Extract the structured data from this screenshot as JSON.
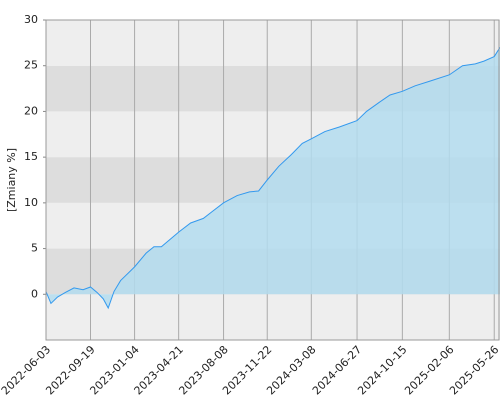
{
  "chart_data": {
    "type": "area",
    "ylabel": "[Zmiany %]",
    "x": [
      "2022-06-03",
      "2022-06-15",
      "2022-07-01",
      "2022-07-20",
      "2022-08-10",
      "2022-09-01",
      "2022-09-19",
      "2022-10-05",
      "2022-10-20",
      "2022-11-01",
      "2022-11-15",
      "2022-12-01",
      "2023-01-04",
      "2023-02-01",
      "2023-02-20",
      "2023-03-10",
      "2023-04-21",
      "2023-05-20",
      "2023-06-20",
      "2023-07-10",
      "2023-08-08",
      "2023-09-10",
      "2023-10-10",
      "2023-11-01",
      "2023-11-22",
      "2023-12-20",
      "2024-01-20",
      "2024-02-15",
      "2024-03-08",
      "2024-04-10",
      "2024-05-15",
      "2024-06-27",
      "2024-07-20",
      "2024-08-20",
      "2024-09-15",
      "2024-10-15",
      "2024-11-15",
      "2024-12-20",
      "2025-02-06",
      "2025-03-10",
      "2025-04-10",
      "2025-05-01",
      "2025-05-26",
      "2025-06-09"
    ],
    "values": [
      0.3,
      -1.0,
      -0.3,
      0.2,
      0.7,
      0.5,
      0.8,
      0.2,
      -0.5,
      -1.5,
      0.3,
      1.5,
      3.0,
      4.5,
      5.2,
      5.2,
      6.8,
      7.8,
      8.3,
      9.0,
      10.0,
      10.8,
      11.2,
      11.3,
      12.5,
      14.0,
      15.3,
      16.5,
      17.0,
      17.8,
      18.3,
      19.0,
      20.0,
      21.0,
      21.8,
      22.2,
      22.8,
      23.3,
      24.0,
      25.0,
      25.2,
      25.5,
      26.0,
      27.0
    ],
    "color": "#3399ee",
    "fill": "#b3dcee",
    "xlim": [
      "2022-06-03",
      "2025-06-09"
    ],
    "xticks": [
      "2022-06-03",
      "2022-09-19",
      "2023-01-04",
      "2023-04-21",
      "2023-08-08",
      "2023-11-22",
      "2024-03-08",
      "2024-06-27",
      "2024-10-15",
      "2025-02-06",
      "2025-05-26"
    ],
    "ylim": [
      -5,
      30
    ],
    "yticks": [
      0,
      5,
      10,
      15,
      20,
      25,
      30
    ],
    "bands": true,
    "grid": true
  }
}
